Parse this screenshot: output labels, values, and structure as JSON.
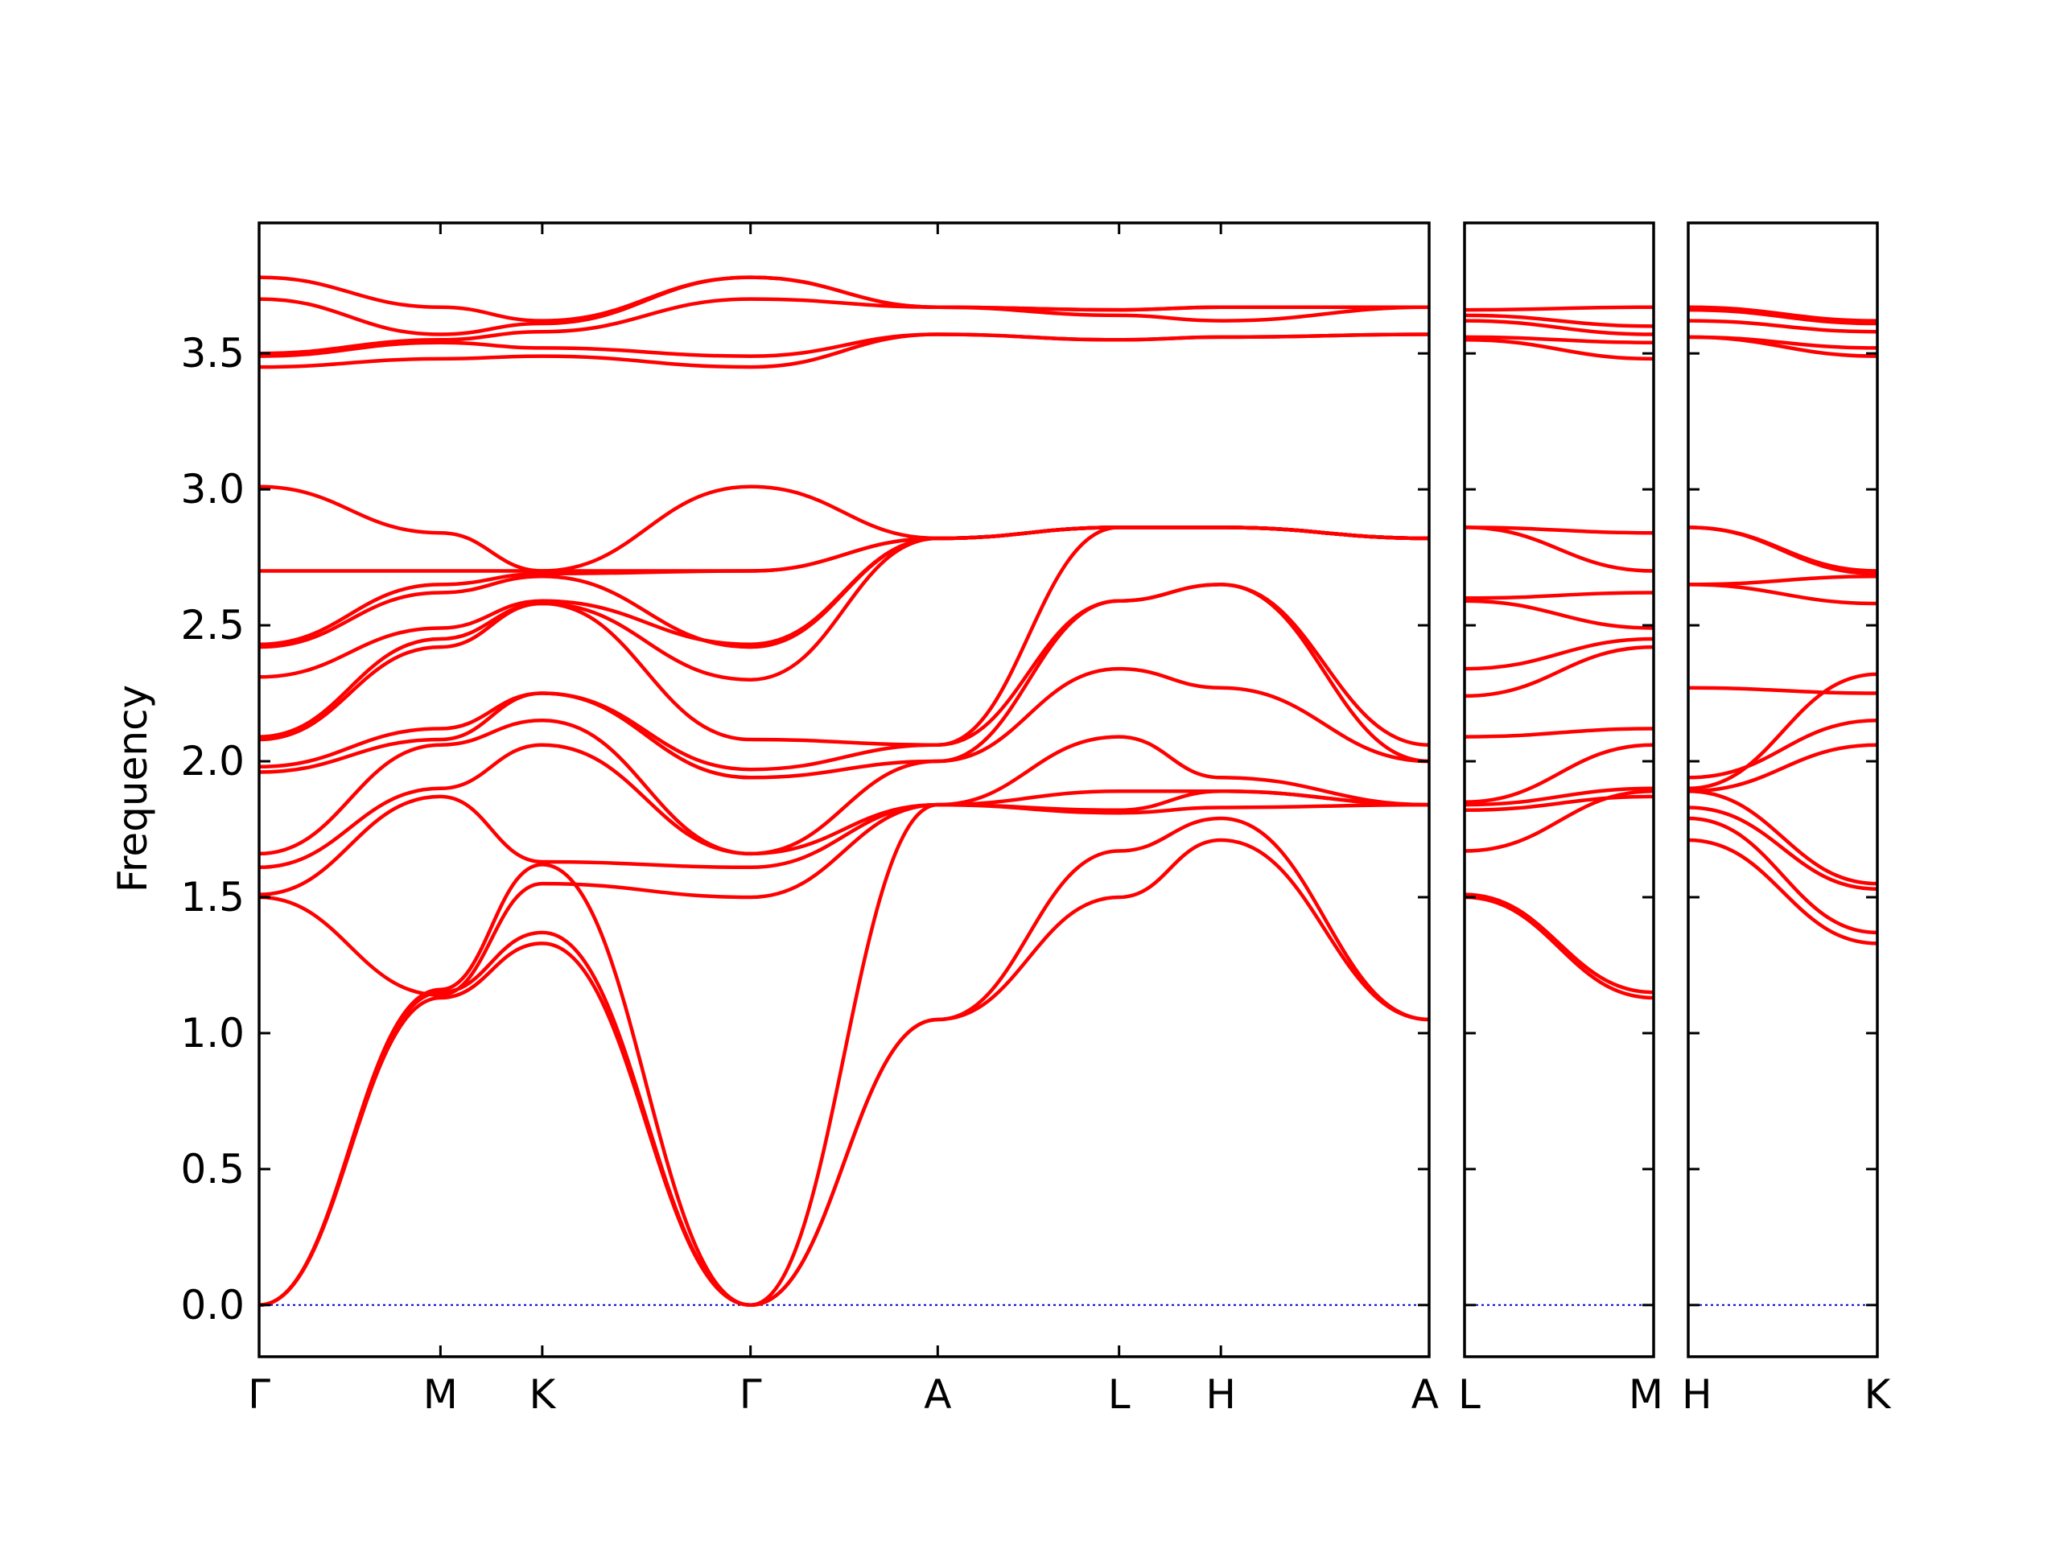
{
  "chart_data": {
    "type": "line",
    "ylabel": "Frequency",
    "ylim": [
      -0.19,
      3.98
    ],
    "yticks": [
      "0.0",
      "0.5",
      "1.0",
      "1.5",
      "2.0",
      "2.5",
      "3.0",
      "3.5"
    ],
    "line_color": "#ff0000",
    "zero_line_color": "#0000cc",
    "panels": [
      {
        "segments": [
          {
            "from": "Γ",
            "to": "M",
            "length": 0.155
          },
          {
            "from": "M",
            "to": "K",
            "length": 0.087
          },
          {
            "from": "K",
            "to": "Γ",
            "length": 0.178
          },
          {
            "from": "Γ",
            "to": "A",
            "length": 0.16
          },
          {
            "from": "A",
            "to": "L",
            "length": 0.155
          },
          {
            "from": "L",
            "to": "H",
            "length": 0.087
          },
          {
            "from": "H",
            "to": "A",
            "length": 0.178
          }
        ],
        "xtick_labels": [
          "Γ",
          "M",
          "K",
          "Γ",
          "A",
          "L",
          "H",
          "A"
        ],
        "bands": [
          {
            "name": "b1",
            "values": [
              0.0,
              1.13,
              1.33,
              0.0,
              1.05,
              1.5,
              1.71,
              1.05
            ]
          },
          {
            "name": "b2",
            "values": [
              0.0,
              1.15,
              1.37,
              0.0,
              1.05,
              1.67,
              1.79,
              1.05
            ]
          },
          {
            "name": "b3",
            "values": [
              0.0,
              1.16,
              1.62,
              0.0,
              1.84,
              1.81,
              1.83,
              1.84
            ]
          },
          {
            "name": "b4",
            "values": [
              1.5,
              1.14,
              1.55,
              1.5,
              1.84,
              1.82,
              1.89,
              1.84
            ]
          },
          {
            "name": "b5",
            "values": [
              1.51,
              1.87,
              1.63,
              1.61,
              1.84,
              1.89,
              1.89,
              1.84
            ]
          },
          {
            "name": "b6",
            "values": [
              1.61,
              1.9,
              2.06,
              1.66,
              1.84,
              2.09,
              1.94,
              1.84
            ]
          },
          {
            "name": "b7",
            "values": [
              1.66,
              2.06,
              2.15,
              1.66,
              2.0,
              2.34,
              2.27,
              2.0
            ]
          },
          {
            "name": "b8",
            "values": [
              1.96,
              2.08,
              2.25,
              1.94,
              2.0,
              2.59,
              2.65,
              2.0
            ]
          },
          {
            "name": "b9",
            "values": [
              1.98,
              2.12,
              2.25,
              1.97,
              2.06,
              2.59,
              2.65,
              2.06
            ]
          },
          {
            "name": "b10",
            "values": [
              2.08,
              2.42,
              2.58,
              2.08,
              2.06,
              2.86,
              2.86,
              2.82
            ]
          },
          {
            "name": "b11",
            "values": [
              2.09,
              2.45,
              2.58,
              2.3,
              2.82,
              2.86,
              2.86,
              2.82
            ]
          },
          {
            "name": "b12",
            "values": [
              2.31,
              2.49,
              2.59,
              2.43,
              2.82,
              2.86,
              2.86,
              2.82
            ]
          },
          {
            "name": "b13",
            "values": [
              2.42,
              2.62,
              2.68,
              2.42,
              2.82,
              2.86,
              2.86,
              2.82
            ]
          },
          {
            "name": "b14",
            "values": [
              2.43,
              2.65,
              2.69,
              2.7,
              2.82,
              2.86,
              2.86,
              2.82
            ]
          },
          {
            "name": "b15",
            "values": [
              2.7,
              2.7,
              2.7,
              3.01,
              2.82,
              2.86,
              2.86,
              2.82
            ]
          },
          {
            "name": "b16",
            "values": [
              3.01,
              2.84,
              2.7,
              2.7,
              2.82,
              2.86,
              2.86,
              2.82
            ]
          },
          {
            "name": "b17",
            "values": [
              3.45,
              3.48,
              3.49,
              3.45,
              3.57,
              3.55,
              3.56,
              3.57
            ]
          },
          {
            "name": "b18",
            "values": [
              3.49,
              3.54,
              3.52,
              3.49,
              3.57,
              3.55,
              3.56,
              3.57
            ]
          },
          {
            "name": "b19",
            "values": [
              3.5,
              3.55,
              3.58,
              3.7,
              3.67,
              3.64,
              3.62,
              3.67
            ]
          },
          {
            "name": "b20",
            "values": [
              3.7,
              3.57,
              3.61,
              3.78,
              3.67,
              3.66,
              3.67,
              3.67
            ]
          },
          {
            "name": "b21",
            "values": [
              3.78,
              3.67,
              3.62,
              3.78,
              3.67,
              3.66,
              3.67,
              3.67
            ]
          }
        ]
      },
      {
        "segments": [
          {
            "from": "L",
            "to": "M",
            "length": 1
          }
        ],
        "xtick_labels": [
          "L",
          "M"
        ],
        "bands": [
          {
            "name": "b1",
            "values": [
              1.5,
              1.13
            ]
          },
          {
            "name": "b2",
            "values": [
              1.51,
              1.15
            ]
          },
          {
            "name": "b3",
            "values": [
              1.82,
              1.87
            ]
          },
          {
            "name": "b4",
            "values": [
              1.84,
              1.9
            ]
          },
          {
            "name": "b5",
            "values": [
              1.67,
              1.89
            ]
          },
          {
            "name": "b6",
            "values": [
              1.85,
              2.06
            ]
          },
          {
            "name": "b7",
            "values": [
              2.09,
              2.12
            ]
          },
          {
            "name": "b8",
            "values": [
              2.24,
              2.42
            ]
          },
          {
            "name": "b9",
            "values": [
              2.34,
              2.45
            ]
          },
          {
            "name": "b10",
            "values": [
              2.59,
              2.49
            ]
          },
          {
            "name": "b11",
            "values": [
              2.6,
              2.62
            ]
          },
          {
            "name": "b12",
            "values": [
              2.86,
              2.7
            ]
          },
          {
            "name": "b13",
            "values": [
              2.86,
              2.84
            ]
          },
          {
            "name": "b14",
            "values": [
              3.55,
              3.48
            ]
          },
          {
            "name": "b15",
            "values": [
              3.56,
              3.54
            ]
          },
          {
            "name": "b16",
            "values": [
              3.62,
              3.57
            ]
          },
          {
            "name": "b17",
            "values": [
              3.64,
              3.6
            ]
          },
          {
            "name": "b18",
            "values": [
              3.66,
              3.67
            ]
          }
        ]
      },
      {
        "segments": [
          {
            "from": "H",
            "to": "K",
            "length": 1
          }
        ],
        "xtick_labels": [
          "H",
          "K"
        ],
        "bands": [
          {
            "name": "b1",
            "values": [
              1.71,
              1.33
            ]
          },
          {
            "name": "b2",
            "values": [
              1.79,
              1.37
            ]
          },
          {
            "name": "b3",
            "values": [
              1.83,
              1.53
            ]
          },
          {
            "name": "b4",
            "values": [
              1.89,
              1.55
            ]
          },
          {
            "name": "b5",
            "values": [
              1.89,
              2.06
            ]
          },
          {
            "name": "b6",
            "values": [
              1.94,
              2.15
            ]
          },
          {
            "name": "b7",
            "values": [
              2.27,
              2.25
            ]
          },
          {
            "name": "b8",
            "values": [
              1.9,
              2.32
            ]
          },
          {
            "name": "b9",
            "values": [
              2.65,
              2.58
            ]
          },
          {
            "name": "b10",
            "values": [
              2.65,
              2.68
            ]
          },
          {
            "name": "b11",
            "values": [
              2.86,
              2.69
            ]
          },
          {
            "name": "b12",
            "values": [
              2.86,
              2.7
            ]
          },
          {
            "name": "b13",
            "values": [
              3.56,
              3.49
            ]
          },
          {
            "name": "b14",
            "values": [
              3.56,
              3.52
            ]
          },
          {
            "name": "b15",
            "values": [
              3.62,
              3.58
            ]
          },
          {
            "name": "b16",
            "values": [
              3.66,
              3.61
            ]
          },
          {
            "name": "b17",
            "values": [
              3.67,
              3.62
            ]
          }
        ]
      }
    ]
  }
}
